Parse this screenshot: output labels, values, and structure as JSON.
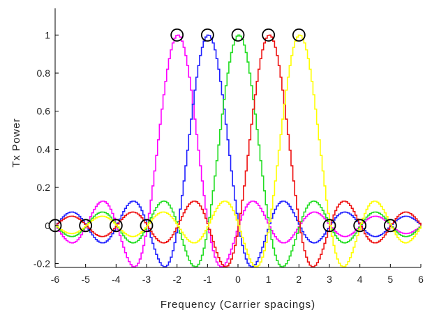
{
  "chart_data": {
    "type": "line",
    "title": "",
    "xlabel": "Frequency (Carrier spacings)",
    "ylabel": "Tx Power",
    "xlim": [
      -6,
      6
    ],
    "ylim": [
      -0.22,
      1.14
    ],
    "x_ticks": [
      -6,
      -5,
      -4,
      -3,
      -2,
      -1,
      0,
      1,
      2,
      3,
      4,
      5,
      6
    ],
    "x_tick_labels": [
      "-6",
      "-5",
      "-4",
      "-3",
      "-2",
      "-1",
      "0",
      "1",
      "2",
      "3",
      "4",
      "5",
      "6"
    ],
    "y_ticks": [
      -0.2,
      0,
      0.2,
      0.4,
      0.6,
      0.8,
      1
    ],
    "y_tick_labels": [
      "-0.2",
      "0",
      "0.2",
      "0.4",
      "0.6",
      "0.8",
      "1"
    ],
    "grid": false,
    "function": "sinc(x - center)",
    "series": [
      {
        "center": -2,
        "color": "#ff00ff"
      },
      {
        "center": -1,
        "color": "#1f1fff"
      },
      {
        "center": 0,
        "color": "#22dd22"
      },
      {
        "center": 1,
        "color": "#ee1111"
      },
      {
        "center": 2,
        "color": "#ffff00"
      }
    ],
    "circle_markers": [
      {
        "x": -6,
        "y": 0
      },
      {
        "x": -5,
        "y": 0
      },
      {
        "x": -4,
        "y": 0
      },
      {
        "x": -3,
        "y": 0
      },
      {
        "x": -2,
        "y": 1
      },
      {
        "x": -1,
        "y": 1
      },
      {
        "x": 0,
        "y": 1
      },
      {
        "x": 1,
        "y": 1
      },
      {
        "x": 2,
        "y": 1
      },
      {
        "x": 3,
        "y": 0
      },
      {
        "x": 4,
        "y": 0
      },
      {
        "x": 5,
        "y": 0
      }
    ]
  }
}
